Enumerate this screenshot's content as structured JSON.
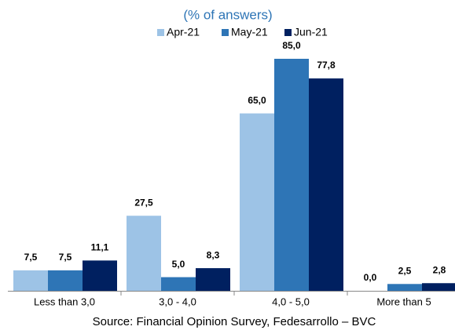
{
  "chart_data": {
    "type": "bar",
    "subtitle": "(% of answers)",
    "source": "Source: Financial Opinion Survey, Fedesarrollo – BVC",
    "categories": [
      "Less than 3,0",
      "3,0 - 4,0",
      "4,0 - 5,0",
      "More than 5"
    ],
    "series": [
      {
        "name": "Apr-21",
        "color": "#9dc3e6",
        "values": [
          7.5,
          27.5,
          65.0,
          0.0
        ],
        "value_labels": [
          "7,5",
          "27,5",
          "65,0",
          "0,0"
        ]
      },
      {
        "name": "May-21",
        "color": "#2e75b6",
        "values": [
          7.5,
          5.0,
          85.0,
          2.5
        ],
        "value_labels": [
          "7,5",
          "5,0",
          "85,0",
          "2,5"
        ]
      },
      {
        "name": "Jun-21",
        "color": "#002060",
        "values": [
          11.1,
          8.3,
          77.8,
          2.8
        ],
        "value_labels": [
          "11,1",
          "8,3",
          "77,8",
          "2,8"
        ]
      }
    ],
    "legend": "top"
  }
}
